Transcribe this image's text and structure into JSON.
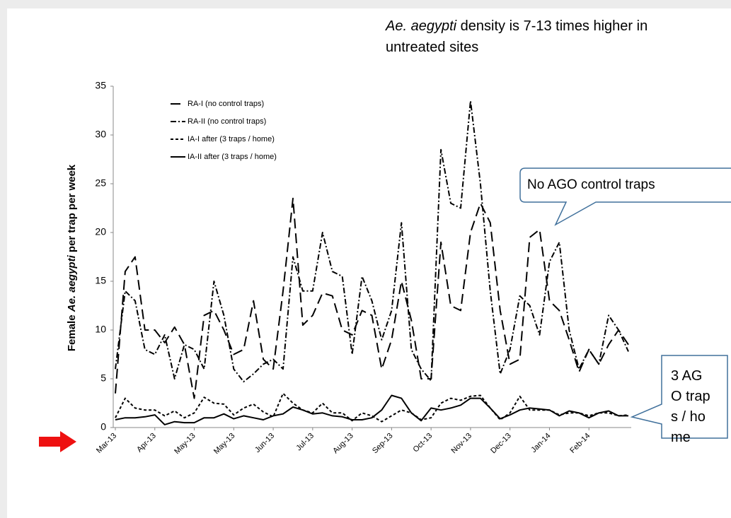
{
  "chart_data": {
    "type": "line",
    "headline": {
      "italic": "Ae. aegypti",
      "text": "density is 7-13 times higher in untreated sites"
    },
    "ylabel": {
      "before": "Female",
      "italic": "Ae. aegypti",
      "after": "per trap per week"
    },
    "categories": [
      "Mar-13",
      null,
      null,
      null,
      "Apr-13",
      null,
      null,
      null,
      "May-13",
      null,
      null,
      null,
      "May-13",
      null,
      null,
      null,
      "Jun-13",
      null,
      null,
      null,
      "Jul-13",
      null,
      null,
      null,
      "Aug-13",
      null,
      null,
      null,
      "Sep-13",
      null,
      null,
      null,
      "Oct-13",
      null,
      null,
      null,
      "Nov-13",
      null,
      null,
      null,
      "Dec-13",
      null,
      null,
      null,
      "Jan-14",
      null,
      null,
      null,
      "Feb-14",
      null,
      null,
      null,
      null
    ],
    "ylim": [
      0,
      35
    ],
    "yticks": [
      0,
      5,
      10,
      15,
      20,
      25,
      30,
      35
    ],
    "legend": "top-left",
    "series": [
      {
        "name": "RA-I (no control traps)",
        "color": "#000000",
        "dash": "14,7",
        "values": [
          3.5,
          16,
          17.5,
          10,
          10,
          8.7,
          10.3,
          8.5,
          3,
          11.5,
          12,
          10,
          7.5,
          8,
          13,
          7,
          6,
          14,
          23.5,
          10.5,
          11.5,
          13.8,
          13.5,
          10,
          9.5,
          12,
          11.5,
          6,
          9,
          15,
          11,
          5,
          5,
          19,
          12.5,
          12,
          20,
          23,
          21,
          12,
          6.5,
          7,
          19.5,
          20.3,
          13,
          12,
          9,
          5.7,
          8,
          6.5,
          8.5,
          10,
          8.5
        ]
      },
      {
        "name": "RA-II (no control traps)",
        "color": "#000000",
        "dash": "8,3,2,3",
        "values": [
          6,
          14,
          13,
          8,
          7.5,
          9.5,
          5,
          8.5,
          8,
          6,
          15,
          11.5,
          6,
          4.7,
          5.5,
          6.5,
          7,
          6,
          17.5,
          14,
          14,
          20,
          16,
          15.5,
          7.5,
          15.5,
          13,
          9,
          12,
          21,
          8,
          6,
          4.8,
          28.5,
          23,
          22.5,
          33.5,
          25,
          14,
          5.5,
          8,
          13.5,
          12.5,
          9.5,
          17,
          19,
          10,
          6,
          8,
          6.5,
          11.5,
          10,
          7.8
        ]
      },
      {
        "name": "IA-I after (3 traps / home)",
        "color": "#000000",
        "dash": "4,3",
        "values": [
          1,
          3,
          2,
          1.8,
          1.8,
          1.2,
          1.7,
          1,
          1.5,
          3.1,
          2.5,
          2.4,
          1.3,
          2,
          2.4,
          1.6,
          1.1,
          3.5,
          2.5,
          1.8,
          1.5,
          2.5,
          1.5,
          1.5,
          0.7,
          1.5,
          1.2,
          0.6,
          1.2,
          1.8,
          1.5,
          0.8,
          1,
          2.5,
          3,
          2.8,
          3.2,
          3.3,
          2,
          0.8,
          1.5,
          3.2,
          1.8,
          1.8,
          1.8,
          1.3,
          1.5,
          1.5,
          1.2,
          1.5,
          1.5,
          1.2,
          1.3
        ]
      },
      {
        "name": "IA-II after (3 traps / home)",
        "color": "#000000",
        "dash": "none",
        "values": [
          0.8,
          1,
          1,
          1.1,
          1.3,
          0.3,
          0.6,
          0.5,
          0.5,
          1,
          1,
          1.4,
          0.9,
          1.2,
          1,
          0.8,
          1.2,
          1.4,
          2.1,
          1.8,
          1.4,
          1.5,
          1.2,
          1.1,
          0.8,
          0.8,
          1,
          1.8,
          3.3,
          3,
          1.5,
          0.7,
          2,
          1.8,
          2,
          2.3,
          3,
          3,
          2,
          0.9,
          1.3,
          1.8,
          2,
          1.9,
          1.8,
          1.2,
          1.7,
          1.5,
          1,
          1.5,
          1.7,
          1.2,
          1.2
        ]
      }
    ],
    "callouts": [
      {
        "text": "No AGO control traps"
      },
      {
        "text": "3 AGO traps / home"
      }
    ]
  }
}
